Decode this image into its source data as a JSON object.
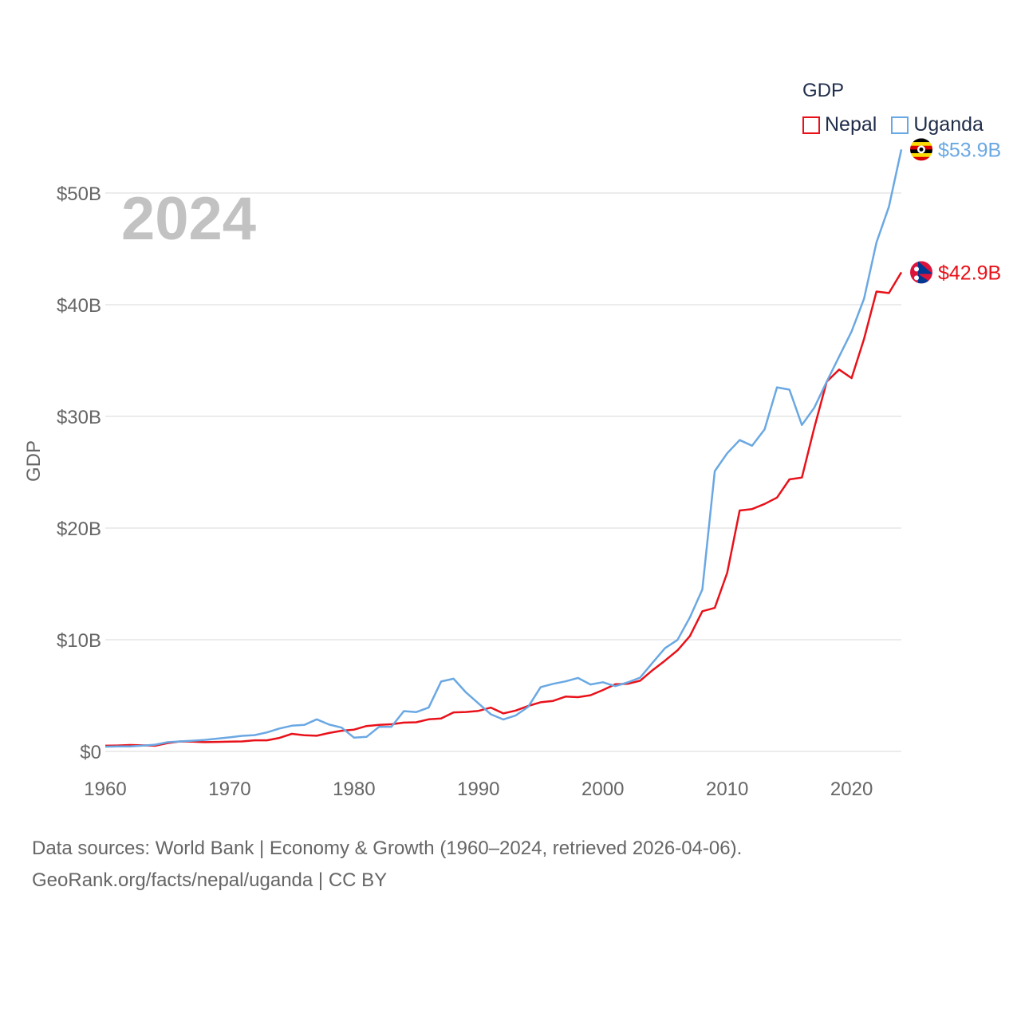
{
  "legend": {
    "title": "GDP",
    "items": [
      {
        "name": "Nepal",
        "color": "#e8111a"
      },
      {
        "name": "Uganda",
        "color": "#6aa8e3"
      }
    ]
  },
  "year_label": "2024",
  "footer": {
    "line1": "Data sources: World Bank | Economy & Growth (1960–2024, retrieved 2026-04-06).",
    "line2": "GeoRank.org/facts/nepal/uganda | CC BY"
  },
  "chart_data": {
    "type": "line",
    "title": "GDP",
    "xlabel": "",
    "ylabel": "GDP",
    "xlim": [
      1960,
      2024
    ],
    "ylim": [
      0,
      55
    ],
    "x_ticks": [
      "1960",
      "1970",
      "1980",
      "1990",
      "2000",
      "2010",
      "2020"
    ],
    "y_ticks": [
      "$0",
      "$10B",
      "$20B",
      "$30B",
      "$40B",
      "$50B"
    ],
    "y_tick_values": [
      0,
      10,
      20,
      30,
      40,
      50
    ],
    "grid": true,
    "unit": "USD billions",
    "x": [
      1960,
      1961,
      1962,
      1963,
      1964,
      1965,
      1966,
      1967,
      1968,
      1969,
      1970,
      1971,
      1972,
      1973,
      1974,
      1975,
      1976,
      1977,
      1978,
      1979,
      1980,
      1981,
      1982,
      1983,
      1984,
      1985,
      1986,
      1987,
      1988,
      1989,
      1990,
      1991,
      1992,
      1993,
      1994,
      1995,
      1996,
      1997,
      1998,
      1999,
      2000,
      2001,
      2002,
      2003,
      2004,
      2005,
      2006,
      2007,
      2008,
      2009,
      2010,
      2011,
      2012,
      2013,
      2014,
      2015,
      2016,
      2017,
      2018,
      2019,
      2020,
      2021,
      2022,
      2023,
      2024
    ],
    "series": [
      {
        "name": "Nepal",
        "color": "#e8111a",
        "end_label": "$42.9B",
        "values": [
          0.51,
          0.53,
          0.57,
          0.54,
          0.51,
          0.74,
          0.89,
          0.88,
          0.83,
          0.85,
          0.87,
          0.89,
          0.99,
          0.99,
          1.21,
          1.57,
          1.45,
          1.4,
          1.65,
          1.85,
          1.95,
          2.27,
          2.38,
          2.43,
          2.58,
          2.61,
          2.87,
          2.94,
          3.49,
          3.53,
          3.63,
          3.92,
          3.4,
          3.66,
          4.07,
          4.4,
          4.52,
          4.91,
          4.86,
          5.03,
          5.49,
          6.01,
          6.05,
          6.33,
          7.27,
          8.13,
          9.04,
          10.33,
          12.55,
          12.85,
          16.0,
          21.57,
          21.7,
          22.16,
          22.73,
          24.36,
          24.52,
          28.97,
          33.11,
          34.19,
          33.43,
          36.93,
          41.18,
          41.04,
          42.9
        ]
      },
      {
        "name": "Uganda",
        "color": "#6aa8e3",
        "end_label": "$53.9B",
        "values": [
          0.42,
          0.44,
          0.45,
          0.52,
          0.6,
          0.82,
          0.89,
          0.96,
          1.03,
          1.14,
          1.26,
          1.39,
          1.46,
          1.7,
          2.05,
          2.3,
          2.37,
          2.87,
          2.4,
          2.13,
          1.23,
          1.3,
          2.19,
          2.21,
          3.61,
          3.52,
          3.92,
          6.26,
          6.51,
          5.28,
          4.3,
          3.32,
          2.86,
          3.22,
          3.99,
          5.76,
          6.05,
          6.27,
          6.58,
          5.99,
          6.19,
          5.84,
          6.18,
          6.61,
          7.94,
          9.24,
          9.98,
          12.0,
          14.5,
          25.1,
          26.7,
          27.88,
          27.37,
          28.83,
          32.6,
          32.39,
          29.23,
          30.77,
          33.11,
          35.35,
          37.6,
          40.53,
          45.57,
          48.77,
          53.9
        ]
      }
    ]
  }
}
